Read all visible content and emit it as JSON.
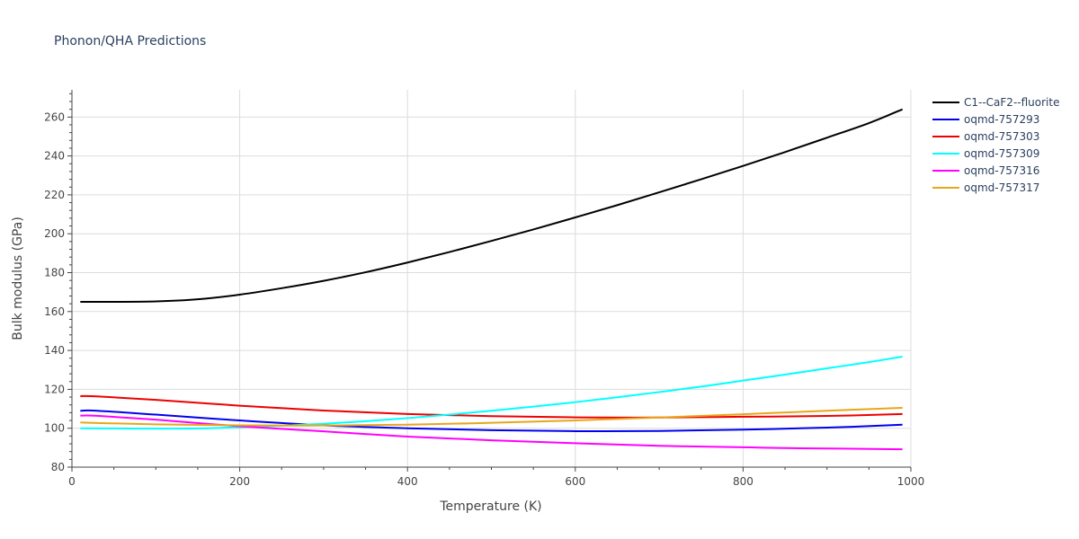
{
  "chart_data": {
    "type": "line",
    "title": "Phonon/QHA Predictions",
    "xlabel": "Temperature (K)",
    "ylabel": "Bulk modulus (GPa)",
    "xlim": [
      0,
      1000
    ],
    "ylim": [
      80,
      274
    ],
    "xticks": [
      0,
      200,
      400,
      600,
      800,
      1000
    ],
    "yticks": [
      80,
      100,
      120,
      140,
      160,
      180,
      200,
      220,
      240,
      260
    ],
    "grid": true,
    "legend_position": "top-right",
    "series": [
      {
        "name": "C1--CaF2--fluorite",
        "color": "#000000",
        "x": [
          10,
          50,
          100,
          150,
          200,
          250,
          300,
          350,
          400,
          450,
          500,
          550,
          600,
          650,
          700,
          750,
          800,
          850,
          900,
          950,
          990
        ],
        "y": [
          165,
          165,
          165.2,
          166.3,
          168.7,
          172,
          175.8,
          180.2,
          185.2,
          190.6,
          196.3,
          202.2,
          208.4,
          214.7,
          221.3,
          228,
          234.9,
          242,
          249.4,
          256.9,
          264
        ]
      },
      {
        "name": "oqmd-757293",
        "color": "#0000ee",
        "x": [
          10,
          30,
          100,
          200,
          300,
          400,
          500,
          600,
          700,
          800,
          900,
          990
        ],
        "y": [
          109,
          109,
          107,
          104,
          101.5,
          100,
          99,
          98.5,
          98.6,
          99.3,
          100.3,
          101.8
        ]
      },
      {
        "name": "oqmd-757303",
        "color": "#ee0000",
        "x": [
          10,
          30,
          100,
          200,
          300,
          400,
          500,
          600,
          700,
          800,
          900,
          990
        ],
        "y": [
          116.5,
          116.4,
          114.6,
          111.6,
          109.1,
          107.3,
          106.2,
          105.6,
          105.5,
          105.9,
          106.3,
          107.3
        ]
      },
      {
        "name": "oqmd-757309",
        "color": "#00ffff",
        "x": [
          10,
          50,
          100,
          150,
          200,
          250,
          300,
          350,
          400,
          450,
          500,
          550,
          600,
          650,
          700,
          750,
          800,
          850,
          900,
          950,
          990
        ],
        "y": [
          100,
          99.9,
          99.8,
          99.9,
          100.5,
          101.3,
          102.3,
          103.6,
          105.2,
          107,
          109,
          111.1,
          113.4,
          115.9,
          118.6,
          121.4,
          124.5,
          127.6,
          130.8,
          134,
          136.8
        ]
      },
      {
        "name": "oqmd-757316",
        "color": "#ff00ff",
        "x": [
          10,
          30,
          100,
          200,
          300,
          400,
          500,
          600,
          700,
          800,
          850,
          990
        ],
        "y": [
          106.5,
          106.4,
          104.4,
          101,
          98.4,
          95.7,
          93.8,
          92.3,
          91,
          90.2,
          89.8,
          89.2
        ]
      },
      {
        "name": "oqmd-757317",
        "color": "#e8a61a",
        "x": [
          10,
          30,
          100,
          200,
          300,
          400,
          500,
          600,
          700,
          800,
          900,
          990
        ],
        "y": [
          103,
          102.7,
          102,
          101.5,
          101.4,
          101.8,
          102.8,
          104,
          105.5,
          107.2,
          109,
          110.5
        ]
      }
    ]
  }
}
